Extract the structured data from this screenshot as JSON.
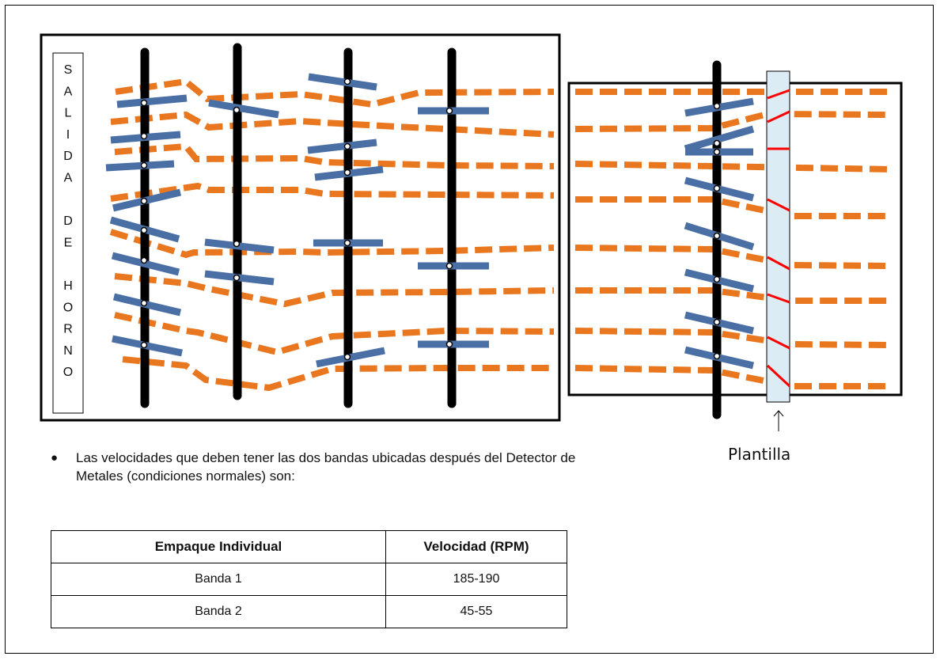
{
  "side_label": {
    "letters": [
      "S",
      "A",
      "L",
      "I",
      "D",
      "A",
      "",
      "D",
      "E",
      "",
      "H",
      "O",
      "R",
      "N",
      "O"
    ]
  },
  "template_label": "Plantilla",
  "bullet": "Las velocidades que deben tener las dos bandas ubicadas después del Detector de Metales (condiciones normales) son:",
  "speed_table": {
    "headers": [
      "Empaque Individual",
      "Velocidad (RPM)"
    ],
    "rows": [
      [
        "Banda 1",
        "185-190"
      ],
      [
        "Banda 2",
        "45-55"
      ]
    ]
  },
  "colors": {
    "conveyor_dash": "#e8771f",
    "guide_bar": "#4a6fa5",
    "shaft": "#000000",
    "template_fill": "#dcecf4",
    "template_mark": "#ff0000"
  }
}
